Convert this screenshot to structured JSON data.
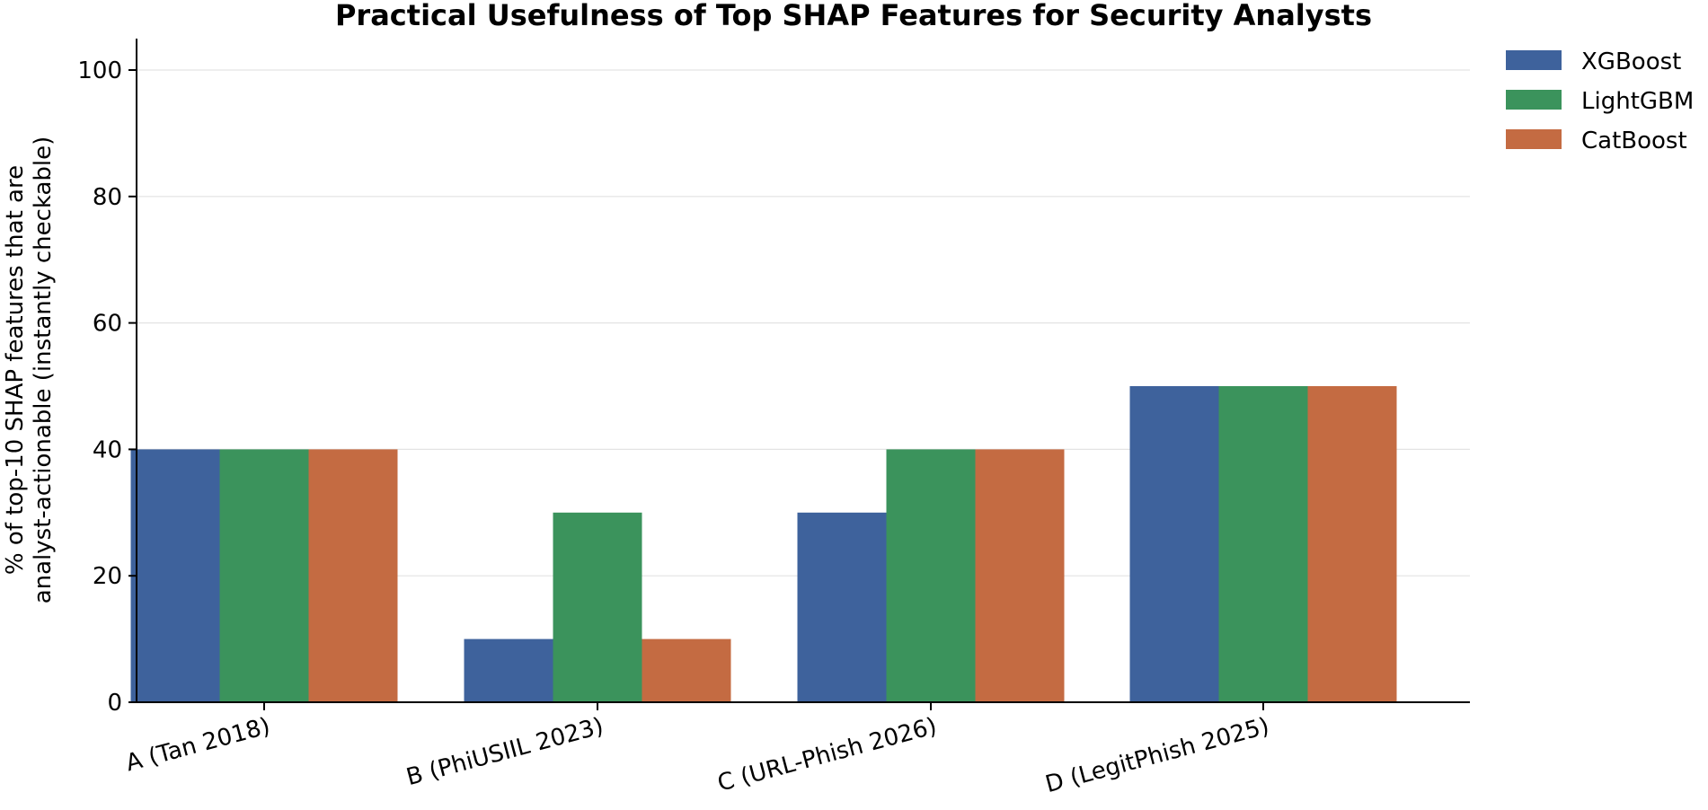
{
  "chart_data": {
    "type": "bar",
    "title": "Practical Usefulness of Top SHAP Features for Security Analysts",
    "ylabel_lines": [
      "% of top-10 SHAP features that are",
      "analyst-actionable (instantly checkable)"
    ],
    "xlabel": "",
    "categories": [
      "A (Tan 2018)",
      "B (PhiUSIIL 2023)",
      "C (URL-Phish 2026)",
      "D (LegitPhish 2025)"
    ],
    "series": [
      {
        "name": "XGBoost",
        "color": "#3e629c",
        "values": [
          40,
          10,
          30,
          50
        ]
      },
      {
        "name": "LightGBM",
        "color": "#3b935c",
        "values": [
          40,
          30,
          40,
          50
        ]
      },
      {
        "name": "CatBoost",
        "color": "#c46b42",
        "values": [
          40,
          10,
          40,
          50
        ]
      }
    ],
    "ylim": [
      0,
      105
    ],
    "yticks": [
      0,
      20,
      40,
      60,
      80,
      100
    ],
    "grid": "horizontal",
    "legend_position": "top-right, outside"
  }
}
